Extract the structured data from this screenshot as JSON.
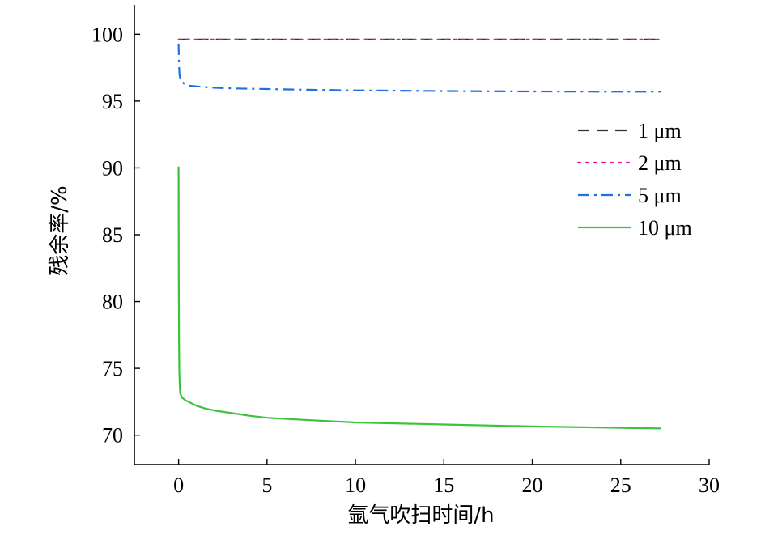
{
  "chart_data": {
    "type": "line",
    "xlabel": "氩气吹扫时间/h",
    "ylabel": "残余率/%",
    "xlim": [
      -2.5,
      30
    ],
    "ylim": [
      67.8,
      102.2
    ],
    "xticks": [
      0,
      5,
      10,
      15,
      20,
      25,
      30
    ],
    "yticks": [
      70,
      75,
      80,
      85,
      90,
      95,
      100
    ],
    "xtick_labels": [
      "0",
      "5",
      "10",
      "15",
      "20",
      "25",
      "30"
    ],
    "ytick_labels": [
      "70",
      "75",
      "80",
      "85",
      "90",
      "95",
      "100"
    ],
    "grid": false,
    "legend_position": "right",
    "series": [
      {
        "name": "1 μm",
        "color": "#333333",
        "dash": "dashed",
        "x": [
          0,
          5,
          10,
          15,
          20,
          25,
          27.3
        ],
        "y": [
          99.6,
          99.6,
          99.6,
          99.6,
          99.6,
          99.6,
          99.6
        ]
      },
      {
        "name": "2 μm",
        "color": "#e0149b",
        "dash": "dotted",
        "x": [
          0,
          5,
          10,
          15,
          20,
          25,
          27.3
        ],
        "y": [
          99.6,
          99.6,
          99.6,
          99.6,
          99.6,
          99.6,
          99.6
        ]
      },
      {
        "name": "5 μm",
        "color": "#1f6fe5",
        "dash": "dashdot",
        "x": [
          0,
          0.02,
          0.05,
          0.1,
          0.3,
          0.6,
          1,
          2,
          3,
          5,
          7,
          10,
          15,
          20,
          25,
          27.3
        ],
        "y": [
          99.3,
          97.8,
          97.0,
          96.6,
          96.3,
          96.15,
          96.1,
          96.0,
          95.95,
          95.9,
          95.85,
          95.8,
          95.75,
          95.72,
          95.7,
          95.7
        ]
      },
      {
        "name": "10 μm",
        "color": "#3cc23c",
        "dash": "solid",
        "x": [
          0,
          0.01,
          0.02,
          0.04,
          0.07,
          0.1,
          0.2,
          0.4,
          0.7,
          1,
          1.5,
          2,
          3,
          4,
          5,
          7,
          10,
          15,
          20,
          25,
          27.3
        ],
        "y": [
          90.1,
          82.0,
          77.5,
          74.8,
          73.6,
          73.1,
          72.8,
          72.6,
          72.4,
          72.2,
          72.0,
          71.85,
          71.65,
          71.45,
          71.3,
          71.15,
          70.95,
          70.8,
          70.65,
          70.55,
          70.5
        ]
      }
    ]
  }
}
